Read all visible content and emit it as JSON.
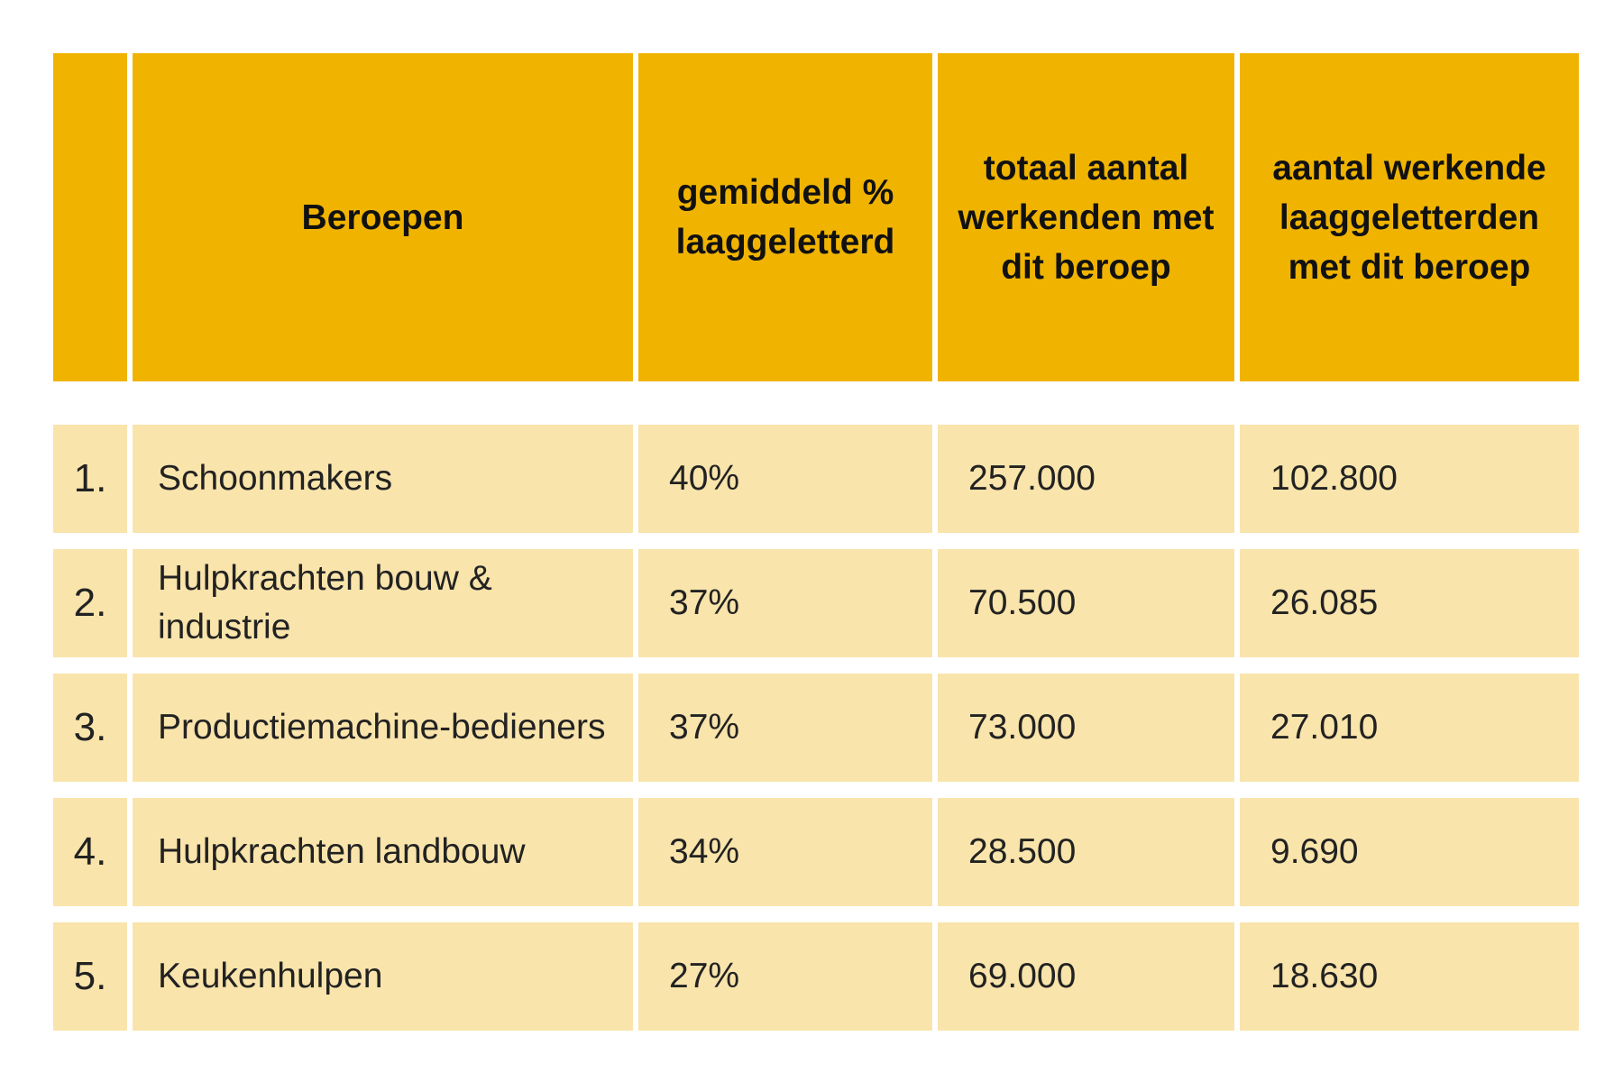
{
  "table": {
    "headers": [
      "",
      "Beroepen",
      "gemiddeld % laaggeletterd",
      "totaal aantal werkenden met dit beroep",
      "aantal werkende laaggeletterden met dit beroep"
    ],
    "rows": [
      {
        "rank": "1.",
        "beroep": "Schoonmakers",
        "percentage": "40%",
        "totaal": "257.000",
        "laaggeletterd": "102.800"
      },
      {
        "rank": "2.",
        "beroep": "Hulpkrachten bouw & industrie",
        "percentage": "37%",
        "totaal": "70.500",
        "laaggeletterd": "26.085"
      },
      {
        "rank": "3.",
        "beroep": "Productiemachine-bedieners",
        "percentage": "37%",
        "totaal": "73.000",
        "laaggeletterd": "27.010"
      },
      {
        "rank": "4.",
        "beroep": "Hulpkrachten landbouw",
        "percentage": "34%",
        "totaal": "28.500",
        "laaggeletterd": "9.690"
      },
      {
        "rank": "5.",
        "beroep": "Keukenhulpen",
        "percentage": "27%",
        "totaal": "69.000",
        "laaggeletterd": "18.630"
      }
    ]
  },
  "colors": {
    "header_bg": "#f0b400",
    "row_bg": "#f9e4ab"
  }
}
